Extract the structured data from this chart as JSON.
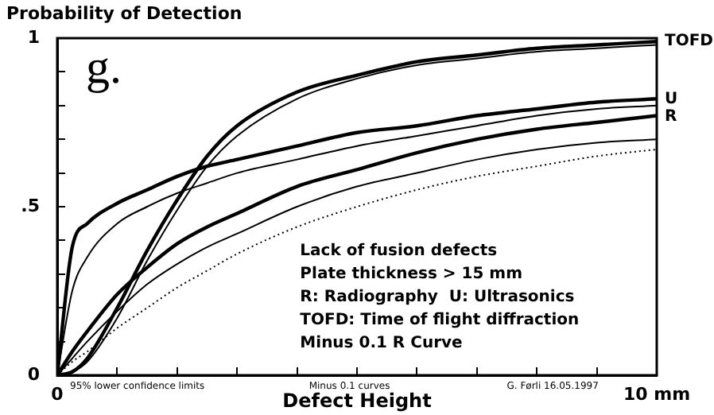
{
  "chart_data": {
    "type": "line",
    "title": "Probability of Detection",
    "xlabel": "Defect Height",
    "x": [
      0,
      0.25,
      0.5,
      1,
      1.5,
      2,
      2.5,
      3,
      4,
      5,
      6,
      7,
      8,
      9,
      10
    ],
    "series": [
      {
        "name": "TOFD",
        "color": "#000000",
        "values": [
          0,
          0.01,
          0.05,
          0.2,
          0.37,
          0.52,
          0.65,
          0.74,
          0.84,
          0.89,
          0.93,
          0.95,
          0.97,
          0.98,
          0.99
        ]
      },
      {
        "color": "#000000",
        "values": [
          0,
          0.01,
          0.04,
          0.17,
          0.34,
          0.49,
          0.62,
          0.71,
          0.82,
          0.88,
          0.92,
          0.94,
          0.96,
          0.97,
          0.98
        ]
      },
      {
        "name": "U",
        "color": "#000000",
        "values": [
          0,
          0.38,
          0.45,
          0.51,
          0.55,
          0.59,
          0.62,
          0.64,
          0.68,
          0.72,
          0.74,
          0.77,
          0.79,
          0.81,
          0.82
        ]
      },
      {
        "color": "#000000",
        "values": [
          0,
          0.25,
          0.35,
          0.45,
          0.5,
          0.54,
          0.57,
          0.6,
          0.64,
          0.68,
          0.71,
          0.74,
          0.77,
          0.79,
          0.8
        ]
      },
      {
        "name": "R",
        "color": "#000000",
        "values": [
          0,
          0.07,
          0.13,
          0.24,
          0.32,
          0.39,
          0.44,
          0.48,
          0.56,
          0.61,
          0.66,
          0.7,
          0.73,
          0.75,
          0.77
        ]
      },
      {
        "color": "#000000",
        "values": [
          0,
          0.05,
          0.1,
          0.19,
          0.27,
          0.33,
          0.38,
          0.42,
          0.5,
          0.56,
          0.6,
          0.64,
          0.67,
          0.69,
          0.7
        ]
      },
      {
        "color": "#000000",
        "line_style": "dotted",
        "values": [
          0,
          0.04,
          0.07,
          0.14,
          0.2,
          0.26,
          0.31,
          0.36,
          0.44,
          0.5,
          0.55,
          0.59,
          0.62,
          0.65,
          0.67
        ]
      }
    ],
    "xlim": [
      0,
      10
    ],
    "xticks": [
      {
        "value": 0,
        "label": "0"
      },
      {
        "value": 1,
        "label": null
      },
      {
        "value": 2,
        "label": null
      },
      {
        "value": 3,
        "label": null
      },
      {
        "value": 4,
        "label": null
      },
      {
        "value": 5,
        "label": null
      },
      {
        "value": 6,
        "label": null
      },
      {
        "value": 7,
        "label": null
      },
      {
        "value": 8,
        "label": null
      },
      {
        "value": 9,
        "label": null
      },
      {
        "value": 10,
        "label": "10 mm"
      }
    ],
    "ylim": [
      0,
      1
    ],
    "yticks": [
      {
        "value": 0,
        "label": "0"
      },
      {
        "value": 0.1,
        "label": null
      },
      {
        "value": 0.2,
        "label": null
      },
      {
        "value": 0.3,
        "label": null
      },
      {
        "value": 0.4,
        "label": null
      },
      {
        "value": 0.5,
        "label": ".5"
      },
      {
        "value": 0.6,
        "label": null
      },
      {
        "value": 0.7,
        "label": null
      },
      {
        "value": 0.8,
        "label": null
      },
      {
        "value": 0.9,
        "label": null
      },
      {
        "value": 1,
        "label": "1"
      }
    ],
    "grid": false,
    "legend": false,
    "marker": "none",
    "line_style": "solid",
    "annotations": [
      "g.",
      "Lack of fusion defects",
      "Plate thickness > 15 mm",
      "R: Radiography  U: Ultrasonics",
      "TOFD: Time of flight diffraction",
      "Minus 0.1 R Curve",
      "95% lower confidence limits",
      "Minus 0.1 curves",
      "G. Førli 16.05.1997"
    ]
  }
}
